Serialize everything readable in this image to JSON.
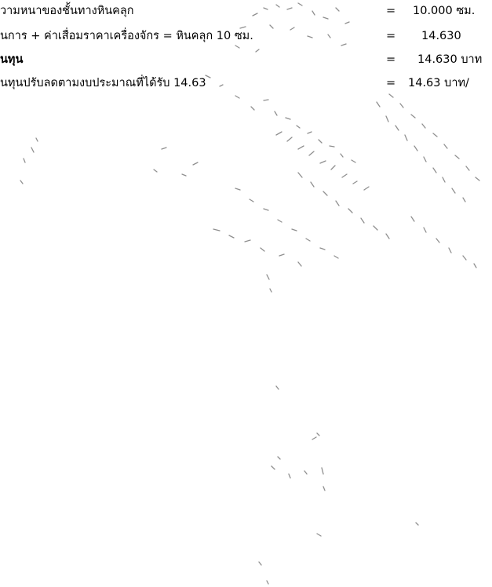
{
  "lines": [
    {
      "label": "วามหนาของชั้นทางหินคลุก",
      "eq": "=",
      "value": "10.000 ซม."
    },
    {
      "label": "นการ + ค่าเสื่อมราคาเครื่องจักร = หินคลุก 10 ซม.",
      "eq": "=",
      "value": "14.630"
    },
    {
      "label": "นทุน",
      "eq": "=",
      "value": "14.630 บาท"
    },
    {
      "label": "นทุนปรับลดตามงบประมาณที่ได้รับ 14.63",
      "eq": "=",
      "value": "14.63 บาท/"
    }
  ]
}
